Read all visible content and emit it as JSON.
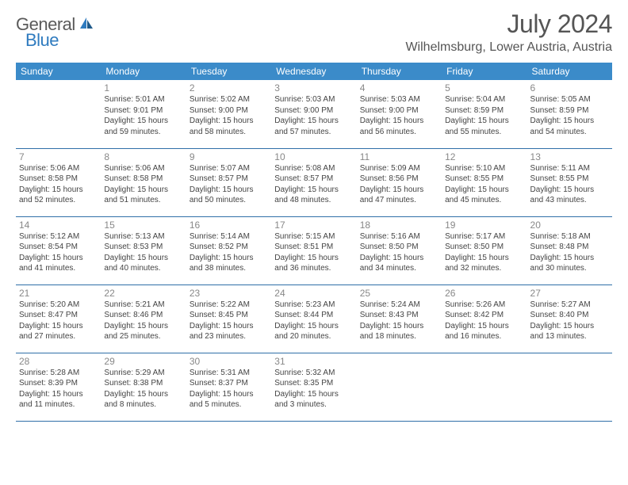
{
  "logo": {
    "text1": "General",
    "text2": "Blue"
  },
  "title": "July 2024",
  "location": "Wilhelmsburg, Lower Austria, Austria",
  "colors": {
    "header_bg": "#3b8bc9",
    "header_text": "#ffffff",
    "row_border": "#2f6fa8",
    "daynum": "#888888",
    "body_text": "#444444",
    "logo_gray": "#5a5a5a",
    "logo_blue": "#2f7bbf"
  },
  "daysOfWeek": [
    "Sunday",
    "Monday",
    "Tuesday",
    "Wednesday",
    "Thursday",
    "Friday",
    "Saturday"
  ],
  "weeks": [
    [
      null,
      {
        "n": "1",
        "sr": "5:01 AM",
        "ss": "9:01 PM",
        "dl": "15 hours and 59 minutes."
      },
      {
        "n": "2",
        "sr": "5:02 AM",
        "ss": "9:00 PM",
        "dl": "15 hours and 58 minutes."
      },
      {
        "n": "3",
        "sr": "5:03 AM",
        "ss": "9:00 PM",
        "dl": "15 hours and 57 minutes."
      },
      {
        "n": "4",
        "sr": "5:03 AM",
        "ss": "9:00 PM",
        "dl": "15 hours and 56 minutes."
      },
      {
        "n": "5",
        "sr": "5:04 AM",
        "ss": "8:59 PM",
        "dl": "15 hours and 55 minutes."
      },
      {
        "n": "6",
        "sr": "5:05 AM",
        "ss": "8:59 PM",
        "dl": "15 hours and 54 minutes."
      }
    ],
    [
      {
        "n": "7",
        "sr": "5:06 AM",
        "ss": "8:58 PM",
        "dl": "15 hours and 52 minutes."
      },
      {
        "n": "8",
        "sr": "5:06 AM",
        "ss": "8:58 PM",
        "dl": "15 hours and 51 minutes."
      },
      {
        "n": "9",
        "sr": "5:07 AM",
        "ss": "8:57 PM",
        "dl": "15 hours and 50 minutes."
      },
      {
        "n": "10",
        "sr": "5:08 AM",
        "ss": "8:57 PM",
        "dl": "15 hours and 48 minutes."
      },
      {
        "n": "11",
        "sr": "5:09 AM",
        "ss": "8:56 PM",
        "dl": "15 hours and 47 minutes."
      },
      {
        "n": "12",
        "sr": "5:10 AM",
        "ss": "8:55 PM",
        "dl": "15 hours and 45 minutes."
      },
      {
        "n": "13",
        "sr": "5:11 AM",
        "ss": "8:55 PM",
        "dl": "15 hours and 43 minutes."
      }
    ],
    [
      {
        "n": "14",
        "sr": "5:12 AM",
        "ss": "8:54 PM",
        "dl": "15 hours and 41 minutes."
      },
      {
        "n": "15",
        "sr": "5:13 AM",
        "ss": "8:53 PM",
        "dl": "15 hours and 40 minutes."
      },
      {
        "n": "16",
        "sr": "5:14 AM",
        "ss": "8:52 PM",
        "dl": "15 hours and 38 minutes."
      },
      {
        "n": "17",
        "sr": "5:15 AM",
        "ss": "8:51 PM",
        "dl": "15 hours and 36 minutes."
      },
      {
        "n": "18",
        "sr": "5:16 AM",
        "ss": "8:50 PM",
        "dl": "15 hours and 34 minutes."
      },
      {
        "n": "19",
        "sr": "5:17 AM",
        "ss": "8:50 PM",
        "dl": "15 hours and 32 minutes."
      },
      {
        "n": "20",
        "sr": "5:18 AM",
        "ss": "8:48 PM",
        "dl": "15 hours and 30 minutes."
      }
    ],
    [
      {
        "n": "21",
        "sr": "5:20 AM",
        "ss": "8:47 PM",
        "dl": "15 hours and 27 minutes."
      },
      {
        "n": "22",
        "sr": "5:21 AM",
        "ss": "8:46 PM",
        "dl": "15 hours and 25 minutes."
      },
      {
        "n": "23",
        "sr": "5:22 AM",
        "ss": "8:45 PM",
        "dl": "15 hours and 23 minutes."
      },
      {
        "n": "24",
        "sr": "5:23 AM",
        "ss": "8:44 PM",
        "dl": "15 hours and 20 minutes."
      },
      {
        "n": "25",
        "sr": "5:24 AM",
        "ss": "8:43 PM",
        "dl": "15 hours and 18 minutes."
      },
      {
        "n": "26",
        "sr": "5:26 AM",
        "ss": "8:42 PM",
        "dl": "15 hours and 16 minutes."
      },
      {
        "n": "27",
        "sr": "5:27 AM",
        "ss": "8:40 PM",
        "dl": "15 hours and 13 minutes."
      }
    ],
    [
      {
        "n": "28",
        "sr": "5:28 AM",
        "ss": "8:39 PM",
        "dl": "15 hours and 11 minutes."
      },
      {
        "n": "29",
        "sr": "5:29 AM",
        "ss": "8:38 PM",
        "dl": "15 hours and 8 minutes."
      },
      {
        "n": "30",
        "sr": "5:31 AM",
        "ss": "8:37 PM",
        "dl": "15 hours and 5 minutes."
      },
      {
        "n": "31",
        "sr": "5:32 AM",
        "ss": "8:35 PM",
        "dl": "15 hours and 3 minutes."
      },
      null,
      null,
      null
    ]
  ],
  "labels": {
    "sunrise": "Sunrise: ",
    "sunset": "Sunset: ",
    "daylight": "Daylight: "
  }
}
